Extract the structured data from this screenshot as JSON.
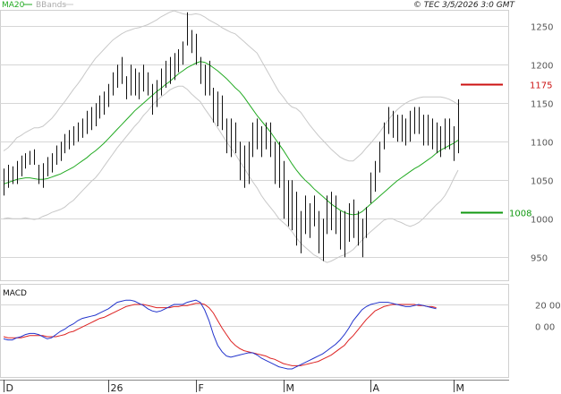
{
  "header": {
    "ma_label": "MA20",
    "bb_label": "BBands",
    "stamp": "© TEC 3/5/2026 3:0 GMT"
  },
  "colors": {
    "ma": "#22aa22",
    "bands": "#c8c8c8",
    "price": "#111111",
    "grid": "#d6d6d6",
    "macd": "#2233cc",
    "signal": "#dd2222",
    "resistance": "#cc1111",
    "support": "#119911"
  },
  "chart_data": [
    {
      "type": "line",
      "subtype": "ohlc-bars",
      "title": "",
      "y_ticks": [
        950,
        1000,
        1050,
        1100,
        1150,
        1200,
        1250
      ],
      "ylim": [
        920,
        1270
      ],
      "x_labels": [
        {
          "label": "D",
          "index": 0
        },
        {
          "label": "26",
          "index": 24
        },
        {
          "label": "F",
          "index": 44
        },
        {
          "label": "M",
          "index": 64
        },
        {
          "label": "A",
          "index": 84
        },
        {
          "label": "M",
          "index": 103
        }
      ],
      "x_count": 105,
      "series": [
        {
          "name": "MA20",
          "role": "ma",
          "values": [
            1045,
            1047,
            1049,
            1051,
            1052,
            1053,
            1053,
            1052,
            1051,
            1051,
            1052,
            1054,
            1056,
            1058,
            1061,
            1064,
            1067,
            1071,
            1075,
            1079,
            1084,
            1088,
            1093,
            1098,
            1104,
            1110,
            1116,
            1122,
            1128,
            1134,
            1140,
            1145,
            1150,
            1155,
            1160,
            1165,
            1169,
            1174,
            1178,
            1183,
            1188,
            1192,
            1196,
            1199,
            1202,
            1204,
            1203,
            1200,
            1196,
            1192,
            1187,
            1182,
            1176,
            1170,
            1165,
            1158,
            1150,
            1142,
            1134,
            1127,
            1120,
            1113,
            1105,
            1097,
            1089,
            1080,
            1071,
            1063,
            1056,
            1050,
            1045,
            1039,
            1034,
            1029,
            1024,
            1019,
            1015,
            1011,
            1008,
            1006,
            1005,
            1006,
            1009,
            1014,
            1019,
            1024,
            1029,
            1034,
            1039,
            1044,
            1049,
            1053,
            1057,
            1061,
            1065,
            1068,
            1072,
            1076,
            1080,
            1085,
            1089,
            1092,
            1095,
            1098,
            1102
          ]
        },
        {
          "name": "BBands",
          "role": "upper",
          "values": [
            1088,
            1092,
            1098,
            1105,
            1108,
            1112,
            1115,
            1118,
            1118,
            1120,
            1125,
            1130,
            1137,
            1145,
            1152,
            1160,
            1168,
            1175,
            1183,
            1192,
            1200,
            1208,
            1214,
            1220,
            1226,
            1232,
            1236,
            1240,
            1243,
            1245,
            1247,
            1248,
            1250,
            1252,
            1255,
            1258,
            1262,
            1265,
            1268,
            1270,
            1268,
            1266,
            1265,
            1265,
            1266,
            1265,
            1262,
            1258,
            1255,
            1252,
            1248,
            1245,
            1242,
            1240,
            1235,
            1230,
            1225,
            1220,
            1215,
            1205,
            1195,
            1185,
            1175,
            1165,
            1158,
            1150,
            1145,
            1143,
            1138,
            1130,
            1122,
            1115,
            1108,
            1102,
            1096,
            1090,
            1085,
            1080,
            1077,
            1075,
            1075,
            1080,
            1085,
            1092,
            1098,
            1105,
            1112,
            1120,
            1128,
            1135,
            1141,
            1146,
            1150,
            1153,
            1155,
            1157,
            1158,
            1158,
            1158,
            1158,
            1158,
            1157,
            1155,
            1152,
            1148
          ]
        },
        {
          "name": "BBands",
          "role": "lower",
          "values": [
            1000,
            1001,
            1000,
            1000,
            1000,
            1001,
            1000,
            999,
            1000,
            1003,
            1005,
            1008,
            1010,
            1012,
            1015,
            1020,
            1024,
            1030,
            1036,
            1042,
            1048,
            1053,
            1060,
            1068,
            1076,
            1084,
            1092,
            1099,
            1106,
            1113,
            1120,
            1126,
            1134,
            1140,
            1147,
            1153,
            1158,
            1162,
            1167,
            1170,
            1172,
            1172,
            1168,
            1162,
            1157,
            1152,
            1143,
            1135,
            1127,
            1118,
            1109,
            1100,
            1092,
            1084,
            1075,
            1066,
            1057,
            1048,
            1040,
            1030,
            1022,
            1015,
            1008,
            1000,
            995,
            990,
            983,
            975,
            968,
            963,
            958,
            953,
            950,
            946,
            943,
            945,
            948,
            951,
            953,
            956,
            960,
            966,
            972,
            978,
            983,
            988,
            993,
            998,
            1000,
            1000,
            997,
            995,
            992,
            990,
            992,
            995,
            1000,
            1006,
            1012,
            1018,
            1023,
            1030,
            1040,
            1052,
            1063
          ]
        },
        {
          "name": "Price",
          "role": "ohlc",
          "high": [
            1065,
            1070,
            1068,
            1075,
            1082,
            1085,
            1088,
            1090,
            1070,
            1072,
            1080,
            1085,
            1095,
            1100,
            1110,
            1115,
            1120,
            1125,
            1130,
            1140,
            1145,
            1150,
            1160,
            1165,
            1175,
            1190,
            1200,
            1210,
            1185,
            1200,
            1195,
            1190,
            1200,
            1190,
            1175,
            1180,
            1195,
            1205,
            1210,
            1215,
            1220,
            1230,
            1268,
            1245,
            1240,
            1210,
            1200,
            1205,
            1170,
            1165,
            1160,
            1130,
            1130,
            1125,
            1100,
            1095,
            1100,
            1125,
            1130,
            1120,
            1125,
            1125,
            1100,
            1100,
            1075,
            1050,
            1050,
            1035,
            1010,
            1030,
            1020,
            1030,
            1010,
            1000,
            1030,
            1035,
            1030,
            1010,
            1010,
            1020,
            1025,
            1010,
            1000,
            1015,
            1060,
            1075,
            1100,
            1125,
            1145,
            1140,
            1135,
            1135,
            1130,
            1140,
            1145,
            1145,
            1135,
            1135,
            1130,
            1125,
            1120,
            1130,
            1130,
            1120,
            1155
          ]
        },
        {
          "name": "Price",
          "role": "ohlc",
          "low": [
            1030,
            1040,
            1045,
            1045,
            1055,
            1065,
            1070,
            1070,
            1045,
            1040,
            1055,
            1060,
            1070,
            1075,
            1085,
            1090,
            1095,
            1100,
            1105,
            1110,
            1115,
            1120,
            1130,
            1135,
            1145,
            1160,
            1170,
            1175,
            1155,
            1160,
            1160,
            1155,
            1165,
            1160,
            1135,
            1145,
            1160,
            1170,
            1175,
            1180,
            1190,
            1200,
            1225,
            1215,
            1200,
            1175,
            1160,
            1160,
            1125,
            1120,
            1115,
            1085,
            1080,
            1085,
            1050,
            1040,
            1045,
            1080,
            1090,
            1080,
            1090,
            1080,
            1045,
            1040,
            1000,
            990,
            985,
            965,
            955,
            980,
            975,
            990,
            955,
            945,
            980,
            985,
            980,
            960,
            950,
            970,
            975,
            965,
            950,
            975,
            1020,
            1035,
            1060,
            1090,
            1110,
            1105,
            1100,
            1100,
            1095,
            1100,
            1110,
            1110,
            1095,
            1095,
            1090,
            1085,
            1080,
            1090,
            1090,
            1075,
            1085
          ]
        }
      ]
    },
    {
      "type": "line",
      "title": "MACD",
      "y_ticks": [
        0,
        20
      ],
      "ylim": [
        -45,
        35
      ],
      "series": [
        {
          "name": "MACD",
          "role": "macd",
          "values": [
            -12,
            -13,
            -13,
            -11,
            -10,
            -8,
            -7,
            -7,
            -8,
            -10,
            -12,
            -11,
            -8,
            -5,
            -3,
            0,
            2,
            5,
            7,
            8,
            9,
            10,
            12,
            14,
            16,
            19,
            22,
            23,
            24,
            24,
            23,
            21,
            19,
            16,
            14,
            13,
            14,
            16,
            18,
            20,
            20,
            20,
            22,
            23,
            24,
            22,
            15,
            5,
            -8,
            -18,
            -24,
            -28,
            -29,
            -28,
            -27,
            -26,
            -25,
            -25,
            -27,
            -30,
            -32,
            -34,
            -36,
            -38,
            -39,
            -40,
            -40,
            -38,
            -36,
            -34,
            -32,
            -30,
            -28,
            -26,
            -23,
            -20,
            -17,
            -13,
            -8,
            -2,
            5,
            10,
            15,
            18,
            20,
            21,
            22,
            22,
            22,
            21,
            20,
            19,
            18,
            18,
            19,
            20,
            19,
            18,
            17,
            16
          ]
        },
        {
          "name": "Signal",
          "role": "signal",
          "values": [
            -10,
            -11,
            -11,
            -11,
            -11,
            -10,
            -9,
            -9,
            -9,
            -9,
            -10,
            -10,
            -10,
            -9,
            -8,
            -6,
            -5,
            -3,
            -1,
            1,
            3,
            5,
            7,
            8,
            10,
            12,
            14,
            16,
            18,
            19,
            20,
            20,
            20,
            19,
            18,
            17,
            17,
            17,
            17,
            18,
            18,
            19,
            19,
            20,
            21,
            21,
            20,
            17,
            12,
            5,
            -2,
            -8,
            -14,
            -18,
            -21,
            -23,
            -24,
            -25,
            -26,
            -27,
            -28,
            -30,
            -31,
            -33,
            -35,
            -36,
            -37,
            -37,
            -37,
            -36,
            -35,
            -34,
            -33,
            -31,
            -29,
            -27,
            -24,
            -21,
            -18,
            -13,
            -9,
            -4,
            1,
            6,
            10,
            14,
            16,
            18,
            19,
            20,
            20,
            20,
            20,
            20,
            20,
            19,
            19,
            18,
            18,
            17
          ]
        }
      ]
    }
  ],
  "levels": {
    "resistance": {
      "value": 1175,
      "label": "1175"
    },
    "support": {
      "value": 1008,
      "label": "1008"
    }
  }
}
